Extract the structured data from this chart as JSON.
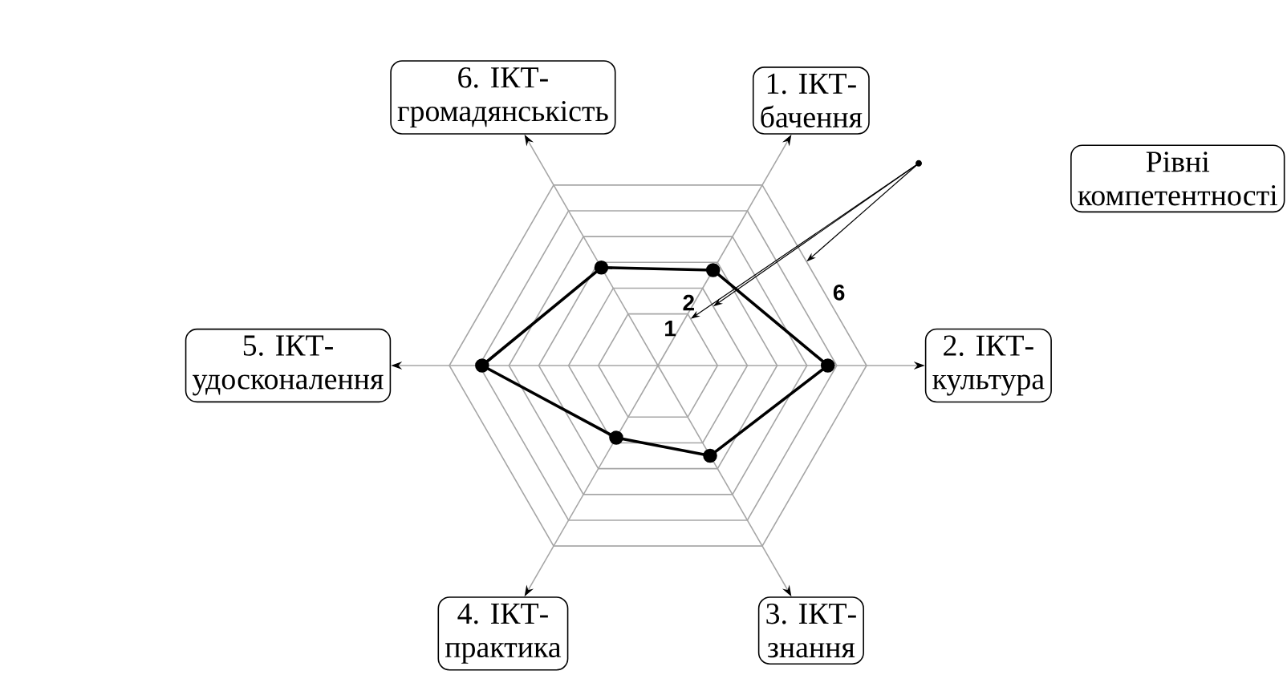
{
  "chart_data": {
    "type": "radar",
    "categories": [
      "1. ІКТ-бачення",
      "2. ІКТ-культура",
      "3. ІКТ-знання",
      "4. ІКТ-практика",
      "5. ІКТ-удосконалення",
      "6. ІКТ-громадянськість"
    ],
    "series": [
      {
        "color": "#000000",
        "values": [
          2.7,
          4.7,
          2.5,
          1.8,
          4.9,
          2.8
        ]
      }
    ],
    "ylim": [
      -1,
      6
    ],
    "yticks": [
      1,
      2,
      6
    ],
    "marker": "circle",
    "grid": true,
    "annotations": [
      "Рівні компетентності"
    ]
  }
}
